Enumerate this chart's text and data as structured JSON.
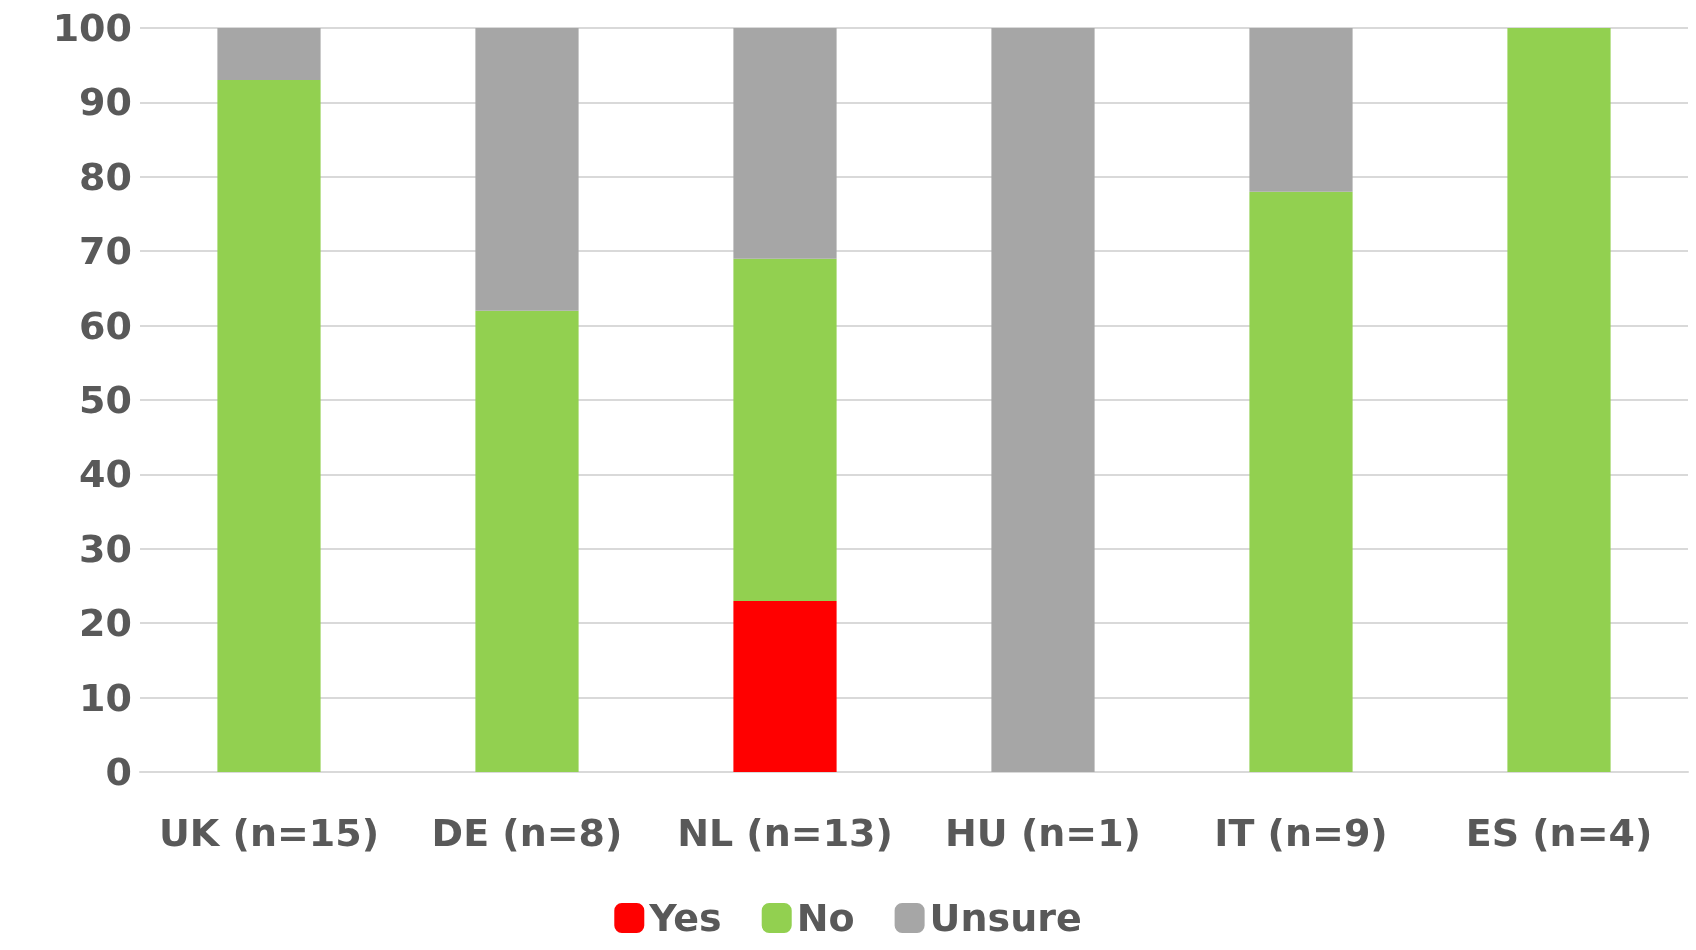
{
  "chart_data": {
    "type": "bar",
    "stacked": true,
    "categories": [
      "UK (n=15)",
      "DE (n=8)",
      "NL (n=13)",
      "HU (n=1)",
      "IT (n=9)",
      "ES (n=4)"
    ],
    "series": [
      {
        "name": "Yes",
        "color": "#ff0000",
        "values": [
          0,
          0,
          23,
          0,
          0,
          0
        ]
      },
      {
        "name": "No",
        "color": "#92d050",
        "values": [
          93,
          62,
          46,
          0,
          78,
          100
        ]
      },
      {
        "name": "Unsure",
        "color": "#a6a6a6",
        "values": [
          7,
          38,
          31,
          100,
          22,
          0
        ]
      }
    ],
    "ylim": [
      0,
      100
    ],
    "yticks": [
      0,
      10,
      20,
      30,
      40,
      50,
      60,
      70,
      80,
      90,
      100
    ],
    "grid": "y",
    "legend": "bottom"
  }
}
